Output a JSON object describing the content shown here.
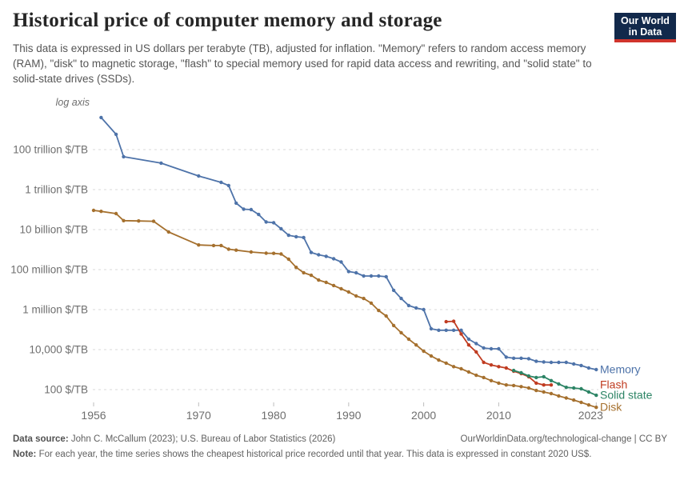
{
  "header": {
    "title": "Historical price of computer memory and storage",
    "subtitle": "This data is expressed in US dollars per terabyte (TB), adjusted for inflation. \"Memory\" refers to random access memory (RAM), \"disk\" to magnetic storage, \"flash\" to special memory used for rapid data access and rewriting, and \"solid state\" to solid-state drives (SSDs).",
    "logo": {
      "line1": "Our World",
      "line2": "in Data"
    }
  },
  "chart_data": {
    "type": "line",
    "scale": "log",
    "log_note": "log axis",
    "unit": "$/TB",
    "x_range": [
      1956,
      2023
    ],
    "x_ticks": [
      1956,
      1970,
      1980,
      1990,
      2000,
      2010,
      2023
    ],
    "y_gridlines": [
      {
        "label": "100 trillion $/TB",
        "value": 100000000000000.0
      },
      {
        "label": "1 trillion $/TB",
        "value": 1000000000000.0
      },
      {
        "label": "10 billion $/TB",
        "value": 10000000000.0
      },
      {
        "label": "100 million $/TB",
        "value": 100000000.0
      },
      {
        "label": "1 million $/TB",
        "value": 1000000.0
      },
      {
        "label": "10,000 $/TB",
        "value": 10000.0
      },
      {
        "label": "100 $/TB",
        "value": 100.0
      }
    ],
    "legend_position": "line-ends-right",
    "grid": "dashed-horizontal",
    "series": [
      {
        "name": "Memory",
        "color": "#4E73A9",
        "points": [
          [
            1957,
            4000000000000000.0
          ],
          [
            1959,
            580000000000000.0
          ],
          [
            1960,
            44000000000000.0
          ],
          [
            1965,
            21000000000000.0
          ],
          [
            1970,
            4800000000000.0
          ],
          [
            1973,
            2300000000000.0
          ],
          [
            1974,
            1600000000000.0
          ],
          [
            1975,
            210000000000.0
          ],
          [
            1976,
            105000000000.0
          ],
          [
            1977,
            100000000000.0
          ],
          [
            1978,
            57000000000.0
          ],
          [
            1979,
            24000000000.0
          ],
          [
            1980,
            22000000000.0
          ],
          [
            1981,
            11000000000.0
          ],
          [
            1982,
            5200000000.0
          ],
          [
            1983,
            4400000000.0
          ],
          [
            1984,
            4000000000.0
          ],
          [
            1985,
            720000000.0
          ],
          [
            1986,
            550000000.0
          ],
          [
            1987,
            460000000.0
          ],
          [
            1988,
            350000000.0
          ],
          [
            1989,
            240000000.0
          ],
          [
            1990,
            80000000.0
          ],
          [
            1991,
            69000000.0
          ],
          [
            1992,
            48000000.0
          ],
          [
            1993,
            48000000.0
          ],
          [
            1994,
            48000000.0
          ],
          [
            1995,
            44000000.0
          ],
          [
            1996,
            9200000.0
          ],
          [
            1997,
            3600000.0
          ],
          [
            1998,
            1600000.0
          ],
          [
            1999,
            1200000.0
          ],
          [
            2000,
            1000000.0
          ],
          [
            2001,
            110000.0
          ],
          [
            2002,
            93000.0
          ],
          [
            2003,
            93000.0
          ],
          [
            2004,
            93000.0
          ],
          [
            2005,
            93000.0
          ],
          [
            2006,
            33000.0
          ],
          [
            2007,
            20000.0
          ],
          [
            2008,
            12000.0
          ],
          [
            2009,
            11000.0
          ],
          [
            2010,
            11000.0
          ],
          [
            2011,
            4200.0
          ],
          [
            2012,
            3700.0
          ],
          [
            2013,
            3700.0
          ],
          [
            2014,
            3500.0
          ],
          [
            2015,
            2600.0
          ],
          [
            2016,
            2400.0
          ],
          [
            2017,
            2300.0
          ],
          [
            2018,
            2300.0
          ],
          [
            2019,
            2300.0
          ],
          [
            2020,
            1900.0
          ],
          [
            2021,
            1600.0
          ],
          [
            2022,
            1200.0
          ],
          [
            2023,
            1000.0
          ]
        ]
      },
      {
        "name": "Disk",
        "color": "#A5702E",
        "points": [
          [
            1956,
            91000000000.0
          ],
          [
            1957,
            82000000000.0
          ],
          [
            1959,
            63000000000.0
          ],
          [
            1960,
            28000000000.0
          ],
          [
            1962,
            27000000000.0
          ],
          [
            1964,
            26000000000.0
          ],
          [
            1966,
            7600000000.0
          ],
          [
            1970,
            1700000000.0
          ],
          [
            1972,
            1600000000.0
          ],
          [
            1973,
            1600000000.0
          ],
          [
            1974,
            1050000000.0
          ],
          [
            1975,
            940000000.0
          ],
          [
            1977,
            760000000.0
          ],
          [
            1979,
            660000000.0
          ],
          [
            1980,
            650000000.0
          ],
          [
            1981,
            600000000.0
          ],
          [
            1982,
            330000000.0
          ],
          [
            1983,
            130000000.0
          ],
          [
            1984,
            70000000.0
          ],
          [
            1985,
            52000000.0
          ],
          [
            1986,
            30000000.0
          ],
          [
            1987,
            23000000.0
          ],
          [
            1988,
            16000000.0
          ],
          [
            1989,
            11000000.0
          ],
          [
            1990,
            7600000.0
          ],
          [
            1991,
            4800000.0
          ],
          [
            1992,
            3600000.0
          ],
          [
            1993,
            2100000.0
          ],
          [
            1994,
            900000.0
          ],
          [
            1995,
            480000.0
          ],
          [
            1996,
            160000.0
          ],
          [
            1997,
            70000.0
          ],
          [
            1998,
            33000.0
          ],
          [
            1999,
            17000.0
          ],
          [
            2000,
            8300.0
          ],
          [
            2001,
            4800.0
          ],
          [
            2002,
            3000.0
          ],
          [
            2003,
            2100.0
          ],
          [
            2004,
            1400.0
          ],
          [
            2005,
            1100.0
          ],
          [
            2006,
            760.0
          ],
          [
            2007,
            520.0
          ],
          [
            2008,
            400.0
          ],
          [
            2009,
            280.0
          ],
          [
            2010,
            210.0
          ],
          [
            2011,
            170.0
          ],
          [
            2012,
            160.0
          ],
          [
            2013,
            140.0
          ],
          [
            2014,
            120.0
          ],
          [
            2015,
            90.0
          ],
          [
            2016,
            76.0
          ],
          [
            2017,
            63.0
          ],
          [
            2018,
            48.0
          ],
          [
            2019,
            38.0
          ],
          [
            2020,
            30.0
          ],
          [
            2021,
            23.0
          ],
          [
            2022,
            17.0
          ],
          [
            2023,
            13.0
          ]
        ]
      },
      {
        "name": "Flash",
        "color": "#C03C21",
        "points": [
          [
            2003,
            250000.0
          ],
          [
            2004,
            260000.0
          ],
          [
            2005,
            60000.0
          ],
          [
            2006,
            17000.0
          ],
          [
            2007,
            7600.0
          ],
          [
            2008,
            2300.0
          ],
          [
            2009,
            1700.0
          ],
          [
            2010,
            1400.0
          ],
          [
            2011,
            1200.0
          ],
          [
            2012,
            830.0
          ],
          [
            2013,
            630.0
          ],
          [
            2014,
            440.0
          ],
          [
            2015,
            210.0
          ],
          [
            2016,
            170.0
          ],
          [
            2017,
            170.0
          ]
        ]
      },
      {
        "name": "Solid state",
        "color": "#2C8465",
        "points": [
          [
            2012,
            900.0
          ],
          [
            2013,
            690.0
          ],
          [
            2014,
            480.0
          ],
          [
            2015,
            400.0
          ],
          [
            2016,
            440.0
          ],
          [
            2017,
            280.0
          ],
          [
            2018,
            190.0
          ],
          [
            2019,
            130.0
          ],
          [
            2020,
            120.0
          ],
          [
            2021,
            110.0
          ],
          [
            2022,
            76.0
          ],
          [
            2023,
            52.0
          ]
        ]
      }
    ]
  },
  "footer": {
    "source_label": "Data source:",
    "source_text": "John C. McCallum (2023); U.S. Bureau of Labor Statistics (2026)",
    "link_text": "OurWorldinData.org/technological-change | CC BY",
    "note_label": "Note:",
    "note_text": "For each year, the time series shows the cheapest historical price recorded until that year. This data is expressed in constant 2020 US$."
  }
}
